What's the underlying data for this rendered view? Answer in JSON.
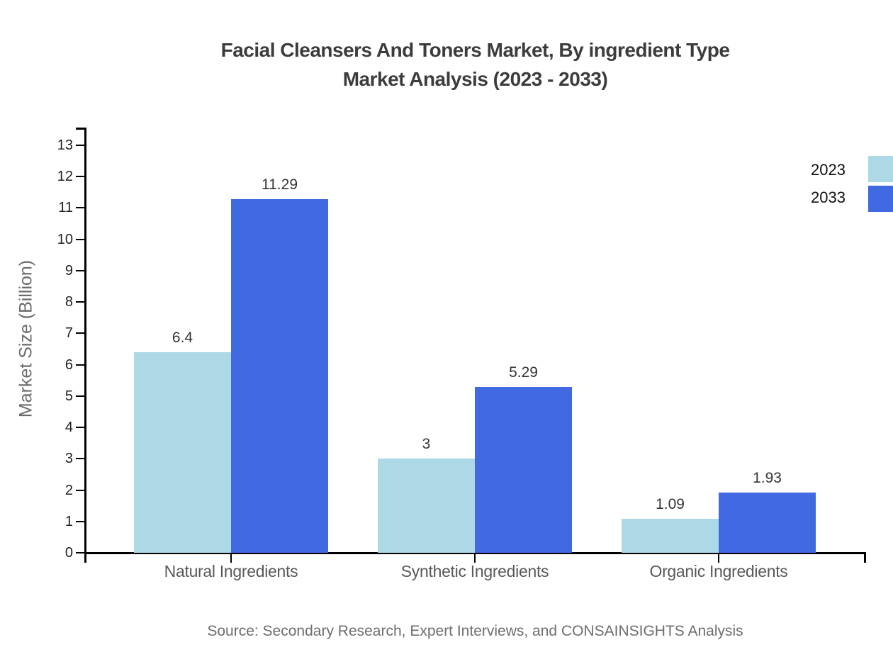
{
  "title": {
    "line1": "Facial Cleansers And Toners Market, By ingredient Type",
    "line2": "Market Analysis (2023 - 2033)"
  },
  "source": "Source: Secondary Research, Expert Interviews, and CONSAINSIGHTS Analysis",
  "chart_data": {
    "type": "bar",
    "title": "Facial Cleansers And Toners Market, By ingredient Type Market Analysis (2023 - 2033)",
    "categories": [
      "Natural Ingredients",
      "Synthetic Ingredients",
      "Organic Ingredients"
    ],
    "series": [
      {
        "name": "2023",
        "color": "#ADD8E6",
        "values": [
          6.4,
          3,
          1.09
        ],
        "labels": [
          "6.4",
          "3",
          "1.09"
        ]
      },
      {
        "name": "2033",
        "color": "#4169E1",
        "values": [
          11.29,
          5.29,
          1.93
        ],
        "labels": [
          "11.29",
          "5.29",
          "1.93"
        ]
      }
    ],
    "xlabel": "",
    "ylabel": "Market Size (Billion)",
    "ylim": [
      0,
      13
    ],
    "ytick_step": 1,
    "ytick_labels": [
      "0",
      "1",
      "2",
      "3",
      "4",
      "5",
      "6",
      "7",
      "8",
      "9",
      "10",
      "11",
      "12",
      "13"
    ],
    "grid": false,
    "legend_position": "top-right",
    "axis_color": "#000000"
  }
}
